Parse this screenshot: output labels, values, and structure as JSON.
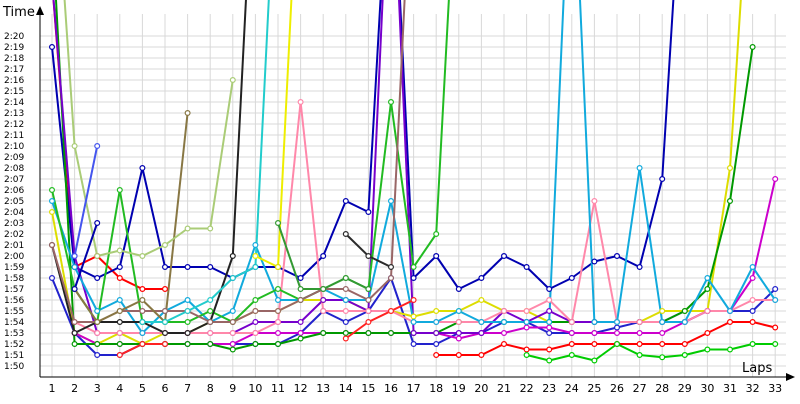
{
  "chart_data": {
    "type": "line",
    "title": "",
    "xlabel": "Laps",
    "ylabel": "Time",
    "x": [
      1,
      2,
      3,
      4,
      5,
      6,
      7,
      8,
      9,
      10,
      11,
      12,
      13,
      14,
      15,
      16,
      17,
      18,
      19,
      20,
      21,
      22,
      23,
      24,
      25,
      26,
      27,
      28,
      29,
      30,
      31,
      32,
      33
    ],
    "x_ticks": [
      "1",
      "2",
      "3",
      "4",
      "5",
      "6",
      "7",
      "8",
      "9",
      "10",
      "11",
      "12",
      "13",
      "14",
      "15",
      "16",
      "17",
      "18",
      "19",
      "20",
      "21",
      "22",
      "23",
      "24",
      "25",
      "26",
      "27",
      "28",
      "29",
      "30",
      "31",
      "32",
      "33"
    ],
    "y_ticks": [
      "1:50",
      "1:51",
      "1:52",
      "1:53",
      "1:54",
      "1:55",
      "1:56",
      "1:57",
      "1:58",
      "1:59",
      "2:00",
      "2:01",
      "2:02",
      "2:03",
      "2:04",
      "2:05",
      "2:06",
      "2:07",
      "2:08",
      "2:09",
      "2:10",
      "2:11",
      "2:12",
      "2:13",
      "2:14",
      "2:15",
      "2:16",
      "2:17",
      "2:18",
      "2:19",
      "2:20"
    ],
    "ylim_seconds": [
      109,
      142
    ],
    "grid": true,
    "legend": "none",
    "series": [
      {
        "color": "#ff0000",
        "values": [
          145,
          119,
          120,
          118,
          117,
          117,
          null,
          null,
          null,
          null,
          null,
          null,
          null,
          null,
          null,
          null,
          null,
          null,
          null,
          null,
          null,
          null,
          null,
          null,
          null,
          null,
          null,
          null,
          null,
          null,
          null,
          null,
          null
        ]
      },
      {
        "color": "#0000b0",
        "values": [
          139,
          119,
          118,
          119,
          128,
          119,
          119,
          119,
          118,
          119,
          119,
          118,
          120,
          125,
          124,
          160,
          118,
          120,
          117,
          118,
          120,
          119,
          117,
          118,
          119.5,
          120,
          119,
          127,
          160,
          null,
          null,
          null,
          null
        ]
      },
      {
        "color": "#2222cc",
        "values": [
          118,
          113,
          111,
          111,
          112,
          112,
          112,
          112,
          112,
          112,
          112,
          113,
          115,
          114,
          115,
          118,
          112,
          112,
          113,
          113,
          114,
          114,
          113,
          113,
          113,
          113.5,
          114,
          114,
          115,
          115,
          115,
          115,
          117
        ]
      },
      {
        "color": "#ff0000",
        "values": [
          null,
          null,
          null,
          null,
          null,
          null,
          null,
          null,
          null,
          null,
          null,
          null,
          null,
          null,
          null,
          null,
          null,
          111,
          111,
          111,
          112,
          111.5,
          111.5,
          112,
          112,
          112,
          112,
          112,
          112,
          113,
          114,
          114,
          113.5
        ]
      },
      {
        "color": "#00cc00",
        "values": [
          null,
          null,
          null,
          null,
          null,
          null,
          null,
          null,
          null,
          null,
          null,
          null,
          null,
          null,
          null,
          null,
          null,
          null,
          null,
          null,
          null,
          111,
          110.5,
          111,
          110.5,
          112,
          111,
          110.8,
          111,
          111.5,
          111.5,
          112,
          112
        ]
      },
      {
        "color": "#dddd00",
        "values": [
          124,
          113,
          112,
          113,
          112,
          113,
          113,
          114,
          114,
          115,
          115,
          116,
          116,
          116,
          115,
          115,
          114.5,
          115,
          115,
          116,
          115,
          115,
          114,
          114,
          114,
          114,
          114,
          115,
          115,
          115,
          128,
          160,
          null
        ]
      },
      {
        "color": "#cc00cc",
        "values": [
          null,
          113,
          112,
          112,
          112,
          112,
          112,
          112,
          112,
          113,
          113,
          113,
          113,
          113,
          113,
          113,
          113,
          113,
          112.5,
          113,
          113,
          113.5,
          113.5,
          113,
          113,
          113,
          113,
          113,
          114,
          115,
          115,
          118,
          127
        ]
      },
      {
        "color": "#009900",
        "values": [
          150,
          112,
          112,
          112,
          112,
          112,
          112,
          112,
          111.5,
          112,
          112,
          112.5,
          113,
          113,
          113,
          113,
          113,
          113,
          114,
          114,
          114,
          114,
          114,
          114,
          114,
          114,
          114,
          114,
          115,
          117,
          125,
          139,
          null
        ]
      },
      {
        "color": "#7700cc",
        "values": [
          145,
          120,
          113,
          113,
          113,
          113,
          113,
          113,
          113,
          114,
          114,
          114,
          116,
          116,
          115,
          160,
          113,
          113,
          113,
          113,
          115,
          114,
          115,
          114,
          114,
          114,
          114,
          114,
          114,
          115,
          115,
          null,
          null
        ]
      },
      {
        "color": "#ff88aa",
        "values": [
          null,
          114,
          113,
          113,
          113,
          113,
          113,
          113,
          113,
          113,
          114,
          134,
          115,
          115,
          115,
          115,
          114,
          114,
          114,
          114,
          115,
          115,
          116,
          114,
          125,
          114,
          114,
          114,
          114,
          115,
          115,
          116,
          116
        ]
      },
      {
        "color": "#11aadd",
        "values": [
          125,
          119,
          115,
          116,
          113,
          115,
          116,
          114,
          115,
          121,
          116,
          116,
          117,
          116,
          116,
          125,
          114,
          114,
          115,
          114,
          114,
          114,
          114,
          160,
          114,
          114,
          128,
          114,
          114,
          118,
          115,
          119,
          116
        ]
      },
      {
        "color": "#22bb22",
        "values": [
          126,
          117,
          114,
          126,
          114,
          114,
          114,
          115,
          114,
          116,
          117,
          116,
          117,
          118,
          117,
          134,
          119,
          122,
          160,
          null,
          null,
          null,
          null,
          null,
          null,
          null,
          null,
          null,
          null,
          null,
          null,
          null,
          null
        ]
      },
      {
        "color": "#222222",
        "values": [
          121,
          113,
          114,
          114,
          114,
          113,
          113,
          114,
          120,
          160,
          null,
          null,
          null,
          null,
          null,
          null,
          null,
          null,
          null,
          null,
          null,
          null,
          null,
          null,
          null,
          null,
          null,
          null,
          null,
          null,
          null,
          null,
          null
        ]
      },
      {
        "color": "#996666",
        "values": [
          121,
          114,
          114,
          115,
          115,
          115,
          115,
          114,
          114,
          115,
          115,
          116,
          117,
          117,
          116,
          118,
          160,
          null,
          null,
          null,
          null,
          null,
          null,
          null,
          null,
          null,
          null,
          null,
          null,
          null,
          null,
          null,
          null
        ]
      },
      {
        "color": "#2b2b2b",
        "values": [
          null,
          null,
          null,
          null,
          null,
          null,
          null,
          null,
          null,
          null,
          null,
          null,
          null,
          122,
          120,
          119,
          null,
          null,
          null,
          null,
          null,
          null,
          null,
          null,
          null,
          null,
          null,
          null,
          null,
          null,
          null,
          null,
          null
        ]
      },
      {
        "color": "#888888",
        "values": [
          null,
          null,
          null,
          null,
          null,
          null,
          null,
          null,
          null,
          null,
          null,
          null,
          null,
          null,
          160,
          null,
          null,
          null,
          null,
          null,
          null,
          null,
          null,
          null,
          null,
          null,
          null,
          null,
          null,
          null,
          null,
          null,
          null
        ]
      },
      {
        "color": "#887744",
        "values": [
          null,
          117,
          114,
          115,
          116,
          114,
          133,
          null,
          null,
          null,
          null,
          null,
          null,
          null,
          null,
          null,
          null,
          null,
          null,
          null,
          null,
          null,
          null,
          null,
          null,
          null,
          null,
          null,
          null,
          null,
          null,
          null,
          null
        ]
      },
      {
        "color": "#aacc77",
        "values": [
          160,
          130,
          120,
          120.5,
          120,
          121,
          122.5,
          122.5,
          136,
          null,
          null,
          null,
          null,
          null,
          null,
          null,
          null,
          null,
          null,
          null,
          null,
          null,
          null,
          null,
          null,
          null,
          null,
          null,
          null,
          null,
          null,
          null,
          null
        ]
      },
      {
        "color": "#4455ee",
        "values": [
          null,
          120,
          130,
          null,
          null,
          null,
          null,
          null,
          null,
          null,
          null,
          null,
          null,
          null,
          null,
          null,
          null,
          null,
          null,
          null,
          null,
          null,
          null,
          null,
          null,
          null,
          null,
          null,
          null,
          null,
          null,
          null,
          null
        ]
      },
      {
        "color": "#0000aa",
        "values": [
          null,
          117,
          123,
          null,
          null,
          null,
          null,
          null,
          null,
          null,
          null,
          null,
          null,
          null,
          null,
          null,
          null,
          null,
          null,
          null,
          null,
          null,
          null,
          null,
          null,
          null,
          null,
          null,
          null,
          null,
          null,
          null,
          null
        ]
      },
      {
        "color": "#ff2222",
        "values": [
          null,
          null,
          null,
          111,
          112,
          112,
          null,
          null,
          null,
          null,
          null,
          null,
          null,
          112.5,
          114,
          115,
          116,
          null,
          null,
          null,
          null,
          null,
          null,
          null,
          null,
          null,
          null,
          null,
          null,
          null,
          null,
          null,
          null
        ]
      },
      {
        "color": "#22cccc",
        "values": [
          null,
          null,
          null,
          null,
          114,
          114,
          115,
          116,
          118,
          119,
          160,
          null,
          null,
          null,
          null,
          null,
          null,
          null,
          null,
          null,
          null,
          null,
          null,
          null,
          null,
          null,
          null,
          null,
          null,
          null,
          null,
          null,
          null
        ]
      },
      {
        "color": "#eeee00",
        "values": [
          null,
          null,
          null,
          null,
          null,
          null,
          null,
          null,
          null,
          120,
          119,
          160,
          null,
          null,
          null,
          null,
          null,
          null,
          null,
          null,
          null,
          null,
          null,
          null,
          null,
          null,
          null,
          null,
          null,
          null,
          null,
          null,
          null
        ]
      },
      {
        "color": "#339933",
        "values": [
          null,
          null,
          null,
          null,
          null,
          null,
          null,
          null,
          null,
          null,
          123,
          117,
          117,
          118,
          117,
          null,
          null,
          null,
          null,
          null,
          null,
          null,
          null,
          null,
          null,
          null,
          null,
          null,
          null,
          null,
          null,
          null,
          null
        ]
      }
    ]
  }
}
